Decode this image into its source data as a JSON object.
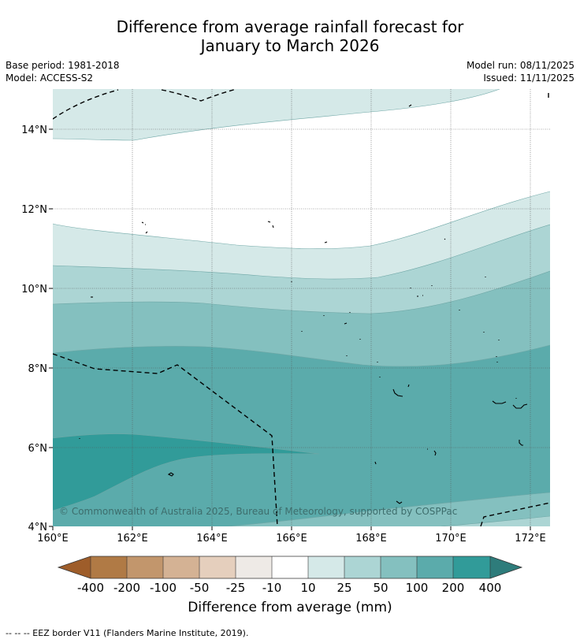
{
  "title": {
    "line1": "Difference from average rainfall forecast for",
    "line2": "January to March 2026"
  },
  "info": {
    "base_period": "Base period: 1981-2018",
    "model": "Model: ACCESS-S2",
    "model_run": "Model run: 08/11/2025",
    "issued": "Issued: 11/11/2025"
  },
  "axes": {
    "lat_labels": [
      "14°N",
      "12°N",
      "10°N",
      "8°N",
      "6°N",
      "4°N"
    ],
    "lon_labels": [
      "160°E",
      "162°E",
      "164°E",
      "166°E",
      "168°E",
      "170°E",
      "172°E"
    ]
  },
  "copyright": "© Commonwealth of Australia 2025, Bureau of Meteorology, supported by COSPPac",
  "colorbar": {
    "tick_labels": [
      "-400",
      "-200",
      "-100",
      "-50",
      "-25",
      "-10",
      "10",
      "25",
      "50",
      "100",
      "200",
      "400"
    ],
    "colors": [
      "#9e5d2a",
      "#b07a45",
      "#c2966c",
      "#d4b294",
      "#e5cfbd",
      "#eeeae6",
      "#ffffff",
      "#d5e9e8",
      "#acd5d4",
      "#84c0bf",
      "#5babab",
      "#319b99",
      "#2e7c7b"
    ],
    "label": "Difference from average (mm)"
  },
  "footnote": "--  --  -- EEZ border V11 (Flanders Marine Institute, 2019)."
}
